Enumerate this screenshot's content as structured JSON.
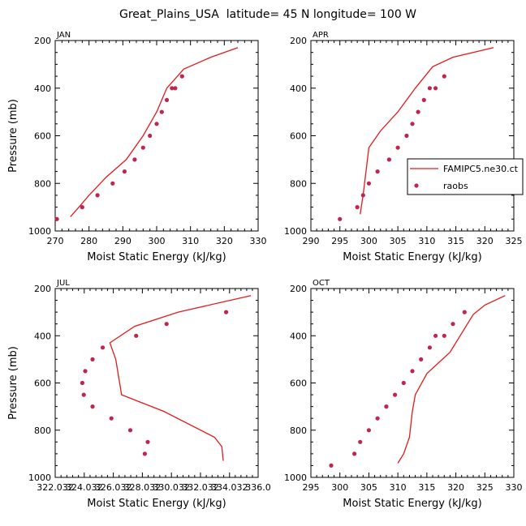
{
  "title": "Great_Plains_USA  latitude= 45 N longitude= 100 W",
  "legend": {
    "model_label": "FAMIPC5.ne30.ct",
    "obs_label": "raobs"
  },
  "colors": {
    "model": "#e31a1c",
    "obs": "#c0254f"
  },
  "chart_data": [
    {
      "type": "line",
      "panel": "JAN",
      "xlabel": "Moist Static Energy (kJ/kg)",
      "ylabel": "Pressure (mb)",
      "xlim": [
        270,
        330
      ],
      "ylim": [
        1000,
        200
      ],
      "xticks": [
        270,
        280,
        290,
        300,
        310,
        320,
        330
      ],
      "xtick_labels": [
        "270",
        "280",
        "290",
        "300",
        "310",
        "320",
        "330"
      ],
      "yticks": [
        200,
        400,
        600,
        800,
        1000
      ],
      "series": [
        {
          "name": "FAMIPC5.ne30.ct",
          "style": "line",
          "x": [
            274.5,
            277,
            280,
            285,
            291,
            296,
            300,
            303,
            308,
            316,
            324
          ],
          "y": [
            940,
            900,
            850,
            775,
            700,
            600,
            500,
            400,
            320,
            270,
            230
          ]
        },
        {
          "name": "raobs",
          "style": "points",
          "x": [
            270.5,
            278,
            282.5,
            287,
            290.5,
            293.5,
            296,
            298,
            300,
            301.5,
            303,
            304.5,
            305.5,
            307.5
          ],
          "y": [
            950,
            900,
            850,
            800,
            750,
            700,
            650,
            600,
            550,
            500,
            450,
            400,
            400,
            350
          ]
        }
      ]
    },
    {
      "type": "line",
      "panel": "APR",
      "xlabel": "Moist Static Energy (kJ/kg)",
      "ylabel": "",
      "xlim": [
        290,
        325
      ],
      "ylim": [
        1000,
        200
      ],
      "xticks": [
        290,
        295,
        300,
        305,
        310,
        315,
        320,
        325
      ],
      "xtick_labels": [
        "290",
        "295",
        "300",
        "305",
        "310",
        "315",
        "320",
        "325"
      ],
      "yticks": [
        200,
        400,
        600,
        800,
        1000
      ],
      "series": [
        {
          "name": "FAMIPC5.ne30.ct",
          "style": "line",
          "x": [
            298.5,
            299,
            299.5,
            300,
            302,
            305,
            308,
            311,
            314.5,
            321.5
          ],
          "y": [
            930,
            850,
            750,
            650,
            580,
            500,
            400,
            310,
            270,
            230
          ]
        },
        {
          "name": "raobs",
          "style": "points",
          "x": [
            295,
            298,
            299,
            300,
            301.5,
            303.5,
            305,
            306.5,
            307.5,
            308.5,
            309.5,
            310.5,
            311.5,
            313
          ],
          "y": [
            950,
            900,
            850,
            800,
            750,
            700,
            650,
            600,
            550,
            500,
            450,
            400,
            400,
            350
          ]
        }
      ]
    },
    {
      "type": "line",
      "panel": "JUL",
      "xlabel": "Moist Static Energy (kJ/kg)",
      "ylabel": "Pressure (mb)",
      "xlim": [
        322.032,
        336.0
      ],
      "ylim": [
        1000,
        200
      ],
      "xticks": [
        322.032,
        324.032,
        326.032,
        328.032,
        330.032,
        332.032,
        334.032,
        336.0
      ],
      "xtick_labels": [
        "322.032",
        "324.032",
        "326.032",
        "328.032",
        "330.032",
        "332.032",
        "334.032",
        "336.0"
      ],
      "yticks": [
        200,
        400,
        600,
        800,
        1000
      ],
      "series": [
        {
          "name": "FAMIPC5.ne30.ct",
          "style": "line",
          "x": [
            335.5,
            330.5,
            327.5,
            325.8,
            326.2,
            326.6,
            329.5,
            333.0,
            333.5,
            333.6
          ],
          "y": [
            230,
            300,
            360,
            430,
            500,
            650,
            720,
            830,
            870,
            930
          ]
        },
        {
          "name": "raobs",
          "style": "points",
          "x": [
            333.8,
            329.7,
            327.6,
            325.3,
            324.6,
            324.1,
            323.9,
            324.0,
            324.6,
            325.9,
            327.2,
            328.4,
            328.2
          ],
          "y": [
            300,
            350,
            400,
            450,
            500,
            550,
            600,
            650,
            700,
            750,
            800,
            850,
            900
          ]
        }
      ]
    },
    {
      "type": "line",
      "panel": "OCT",
      "xlabel": "Moist Static Energy (kJ/kg)",
      "ylabel": "",
      "xlim": [
        295,
        330
      ],
      "ylim": [
        1000,
        200
      ],
      "xticks": [
        295,
        300,
        305,
        310,
        315,
        320,
        325,
        330
      ],
      "xtick_labels": [
        "295",
        "300",
        "305",
        "310",
        "315",
        "320",
        "325",
        "330"
      ],
      "yticks": [
        200,
        400,
        600,
        800,
        1000
      ],
      "series": [
        {
          "name": "FAMIPC5.ne30.ct",
          "style": "line",
          "x": [
            310,
            311,
            312,
            312.5,
            313,
            315,
            319,
            323,
            325,
            328.5
          ],
          "y": [
            940,
            900,
            830,
            720,
            650,
            560,
            470,
            310,
            270,
            230
          ]
        },
        {
          "name": "raobs",
          "style": "points",
          "x": [
            298.5,
            302.5,
            303.5,
            305,
            306.5,
            308,
            309.5,
            311,
            312.5,
            314,
            315.5,
            316.5,
            318,
            319.5,
            321.5
          ],
          "y": [
            950,
            900,
            850,
            800,
            750,
            700,
            650,
            600,
            550,
            500,
            450,
            400,
            400,
            350,
            300
          ]
        }
      ]
    }
  ]
}
